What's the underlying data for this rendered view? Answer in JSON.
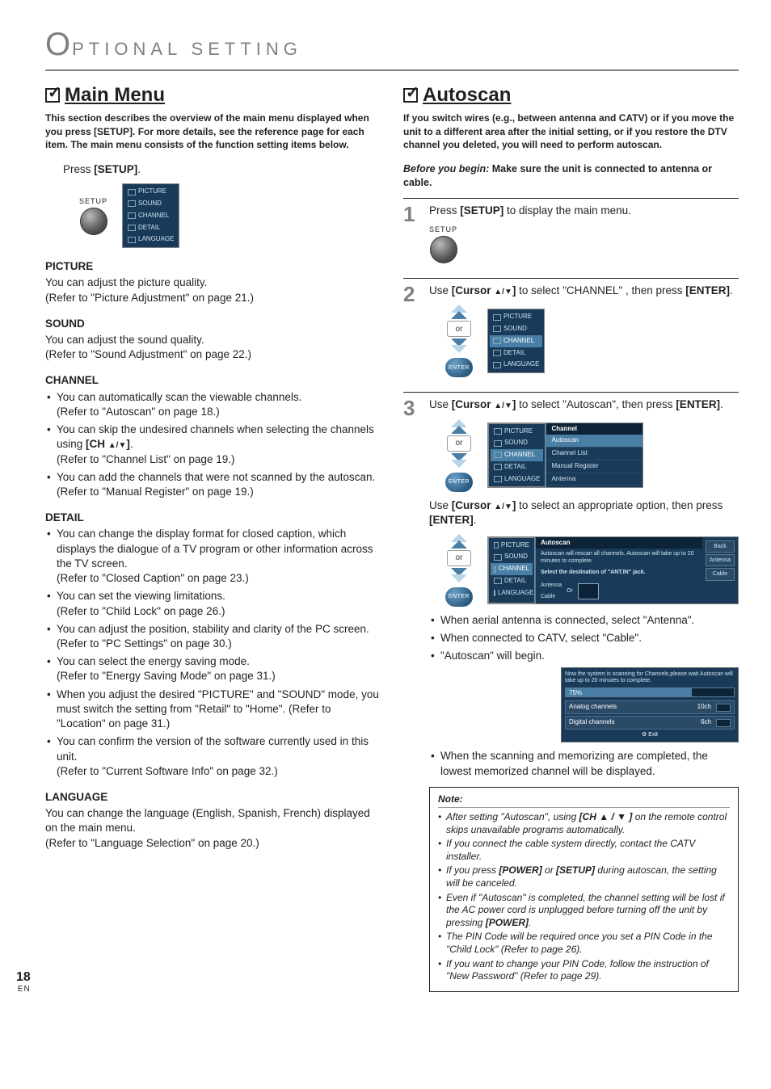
{
  "header": {
    "initial": "O",
    "rest": "PTIONAL  SETTING"
  },
  "page": {
    "num": "18",
    "lang": "EN"
  },
  "left": {
    "title": "Main Menu",
    "intro": "This section describes the overview of the main menu displayed when you press [SETUP]. For more details, see the reference page for each item. The main menu consists of the function setting items below.",
    "press_setup": "Press ",
    "press_setup_b": "[SETUP]",
    "press_setup_end": ".",
    "setup_label": "SETUP",
    "osd_main": [
      "PICTURE",
      "SOUND",
      "CHANNEL",
      "DETAIL",
      "LANGUAGE"
    ],
    "picture": {
      "h": "PICTURE",
      "l1": "You can adjust the picture quality.",
      "l2": "(Refer to \"Picture Adjustment\" on page 21.)"
    },
    "sound": {
      "h": "SOUND",
      "l1": "You can adjust the sound quality.",
      "l2": "(Refer to \"Sound Adjustment\" on page 22.)"
    },
    "channel": {
      "h": "CHANNEL",
      "i1a": "You can automatically scan the viewable channels.",
      "i1b": "(Refer to \"Autoscan\" on page 18.)",
      "i2a": "You can skip the undesired channels when selecting the channels using ",
      "i2b": "[CH ",
      "i2c": "]",
      "i2d": ".",
      "i2e": "(Refer to \"Channel List\" on page 19.)",
      "i3a": "You can add the channels that were not scanned by the autoscan.",
      "i3b": "(Refer to \"Manual Register\" on page 19.)"
    },
    "detail": {
      "h": "DETAIL",
      "i1a": "You can change the display format for closed caption, which displays the dialogue of a TV program or other information across the TV screen.",
      "i1b": "(Refer to \"Closed Caption\" on page 23.)",
      "i2a": "You can set the viewing limitations.",
      "i2b": "(Refer to \"Child Lock\" on page 26.)",
      "i3a": "You can adjust the position, stability and clarity of the PC screen.",
      "i3b": "(Refer to \"PC Settings\" on page 30.)",
      "i4a": "You can select the energy saving mode.",
      "i4b": "(Refer to \"Energy Saving Mode\" on page 31.)",
      "i5a": "When you adjust the desired \"PICTURE\" and \"SOUND\" mode, you must switch the setting from \"Retail\" to \"Home\". (Refer to \"Location\" on page 31.)",
      "i6a": "You can confirm the version of the software currently used in this unit.",
      "i6b": "(Refer to \"Current Software Info\" on page 32.)"
    },
    "language": {
      "h": "LANGUAGE",
      "l1": "You can change the language (English, Spanish, French) displayed on the main menu.",
      "l2": "(Refer to \"Language Selection\" on page 20.)"
    }
  },
  "right": {
    "title": "Autoscan",
    "intro": "If you switch wires (e.g., between antenna and CATV) or if you move the unit to a different area after the initial setting, or if you restore the DTV channel you deleted, you will need to perform autoscan.",
    "byb_lead": "Before you begin:",
    "byb_rest": " Make sure the unit is connected to antenna or cable.",
    "step1": {
      "n": "1",
      "a": "Press ",
      "b": "[SETUP]",
      "c": " to display the main menu.",
      "setup_label": "SETUP"
    },
    "step2": {
      "n": "2",
      "a": "Use ",
      "b": "[Cursor ",
      "c": "]",
      "d": " to select \"CHANNEL\" , then press ",
      "e": "[ENTER]",
      "f": ".",
      "or": "or",
      "enter": "ENTER",
      "osd": [
        "PICTURE",
        "SOUND",
        "CHANNEL",
        "DETAIL",
        "LANGUAGE"
      ],
      "osd_sel": 2
    },
    "step3": {
      "n": "3",
      "a": "Use ",
      "b": "[Cursor ",
      "c": "]",
      "d": " to select \"Autoscan\", then press ",
      "e": "[ENTER]",
      "f": ".",
      "or": "or",
      "enter": "ENTER",
      "osd_left": [
        "PICTURE",
        "SOUND",
        "CHANNEL",
        "DETAIL",
        "LANGUAGE"
      ],
      "osd_left_sel": 2,
      "osd_right_h": "Channel",
      "osd_right": [
        "Autoscan",
        "Channel List",
        "Manual Register",
        "Antenna"
      ],
      "osd_right_sel": 0,
      "p2a": "Use ",
      "p2d": " to select an appropriate option, then press ",
      "p2e": "[ENTER]",
      "p2f": ".",
      "osd3_h": "Autoscan",
      "osd3_hint1": "Autoscan will rescan all channels. Autoscan will take up to 20 minutes to complete.",
      "osd3_hint2": "Select the destination of \"ANT.IN\" jack.",
      "osd3_items": [
        "Antenna",
        "Cable"
      ],
      "osd3_or": "Or",
      "osd3_side": [
        "Back",
        "Antenna",
        "Cable"
      ],
      "b1": "When aerial antenna is connected, select \"Antenna\".",
      "b2": "When connected to CATV, select \"Cable\".",
      "b3": "\"Autoscan\" will begin.",
      "prog_msg": "Now the system is scanning for Channels,please wait Autoscan will take up to 20 minutes to complete.",
      "prog_pct": "75%",
      "prog_fill": 75,
      "prog_r1a": "Analog channels",
      "prog_r1b": "10ch",
      "prog_r2a": "Digital channels",
      "prog_r2b": "6ch",
      "prog_exit": "Exit",
      "b4": "When the scanning and memorizing are completed, the lowest memorized channel will be displayed."
    },
    "note": {
      "h": "Note:",
      "i1a": "After setting \"Autoscan\", using ",
      "i1b": "[CH ",
      "i1c": " ]",
      "i1d": " on the remote control skips unavailable programs automatically.",
      "i2": "If you connect the cable system directly, contact the CATV installer.",
      "i3a": "If you press ",
      "i3b": "[POWER]",
      "i3c": " or ",
      "i3d": "[SETUP]",
      "i3e": " during autoscan, the setting will be canceled.",
      "i4a": "Even if \"Autoscan\" is completed, the channel setting will be lost if the AC power cord is unplugged before turning off the unit by pressing ",
      "i4b": "[POWER]",
      "i4c": ".",
      "i5": "The PIN Code will be required once you set a PIN Code in the \"Child Lock\" (Refer to page 26).",
      "i6": "If you want to change your PIN Code, follow the instruction of \"New Password\" (Refer to page 29)."
    }
  }
}
